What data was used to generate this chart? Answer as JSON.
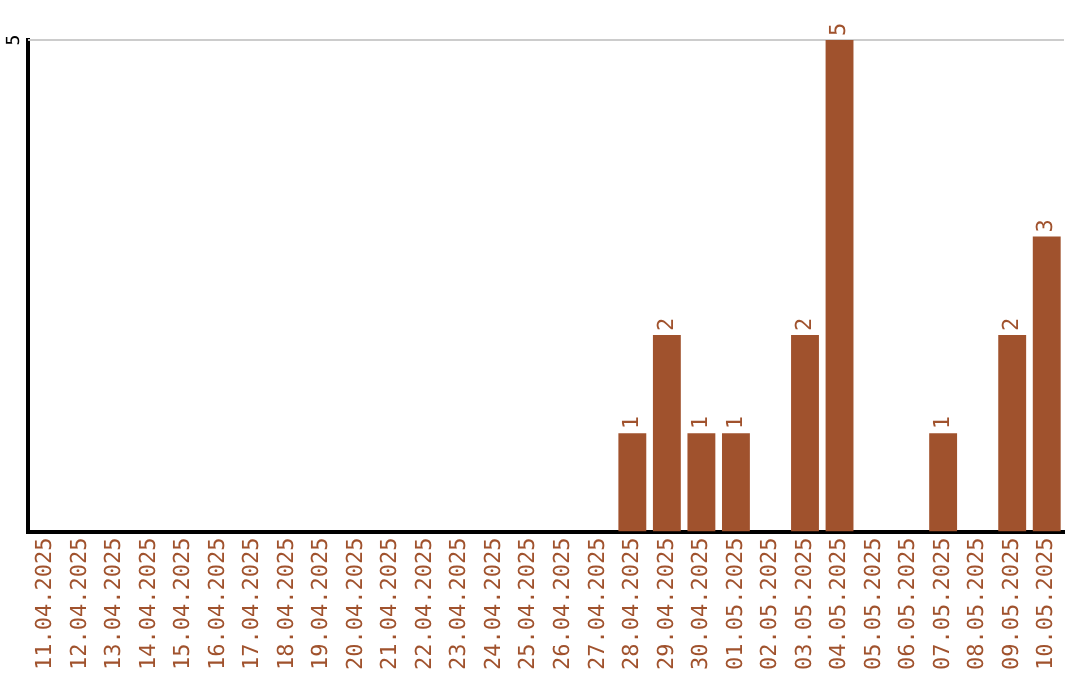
{
  "chart_data": {
    "type": "bar",
    "categories": [
      "11.04.2025",
      "12.04.2025",
      "13.04.2025",
      "14.04.2025",
      "15.04.2025",
      "16.04.2025",
      "17.04.2025",
      "18.04.2025",
      "19.04.2025",
      "20.04.2025",
      "21.04.2025",
      "22.04.2025",
      "23.04.2025",
      "24.04.2025",
      "25.04.2025",
      "26.04.2025",
      "27.04.2025",
      "28.04.2025",
      "29.04.2025",
      "30.04.2025",
      "01.05.2025",
      "02.05.2025",
      "03.05.2025",
      "04.05.2025",
      "05.05.2025",
      "06.05.2025",
      "07.05.2025",
      "08.05.2025",
      "09.05.2025",
      "10.05.2025"
    ],
    "values": [
      null,
      null,
      null,
      null,
      null,
      null,
      null,
      null,
      null,
      null,
      null,
      null,
      null,
      null,
      null,
      null,
      null,
      1,
      2,
      1,
      1,
      null,
      2,
      5,
      null,
      null,
      1,
      null,
      2,
      3
    ],
    "data_labels": true,
    "color": "#a0522d",
    "ylim": [
      0,
      5
    ],
    "ref_lines": [
      {
        "axis": "y",
        "value": 5,
        "label": "5",
        "color": "#cccccc"
      }
    ],
    "legend": false
  }
}
